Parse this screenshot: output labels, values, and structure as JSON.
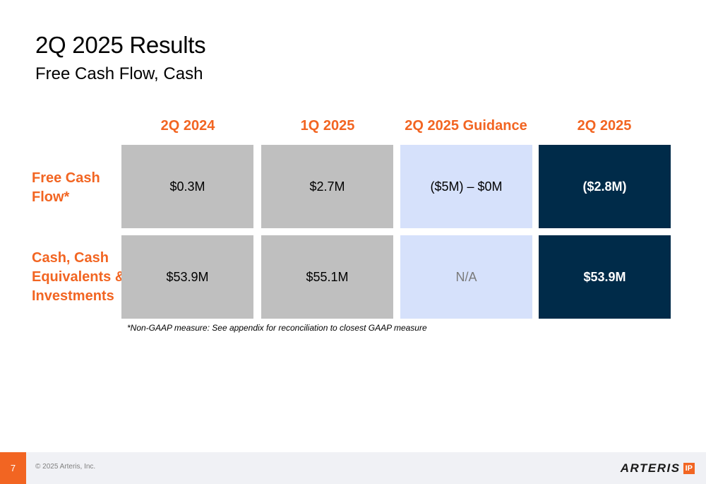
{
  "slide": {
    "title": "2Q 2025 Results",
    "subtitle": "Free Cash Flow, Cash"
  },
  "table": {
    "columns": [
      "2Q 2024",
      "1Q 2025",
      "2Q 2025 Guidance",
      "2Q 2025"
    ],
    "rows": [
      {
        "label_lines": [
          "Free Cash",
          "Flow*"
        ],
        "values": [
          "$0.3M",
          "$2.7M",
          "($5M) – $0M",
          "($2.8M)"
        ]
      },
      {
        "label_lines": [
          "Cash, Cash",
          "Equivalents &",
          "Investments"
        ],
        "values": [
          "$53.9M",
          "$55.1M",
          "N/A",
          "$53.9M"
        ]
      }
    ]
  },
  "footnote": "*Non-GAAP measure: See appendix for reconciliation to closest GAAP measure",
  "footer": {
    "page_number": "7",
    "copyright": "© 2025 Arteris, Inc.",
    "logo_text": "ARTERIS",
    "logo_badge": "IP"
  },
  "colors": {
    "accent": "#f26522",
    "historical_cell": "#bfbfbf",
    "guidance_cell": "#d6e1fb",
    "current_cell": "#002b49",
    "footer_bg": "#f0f1f5"
  }
}
